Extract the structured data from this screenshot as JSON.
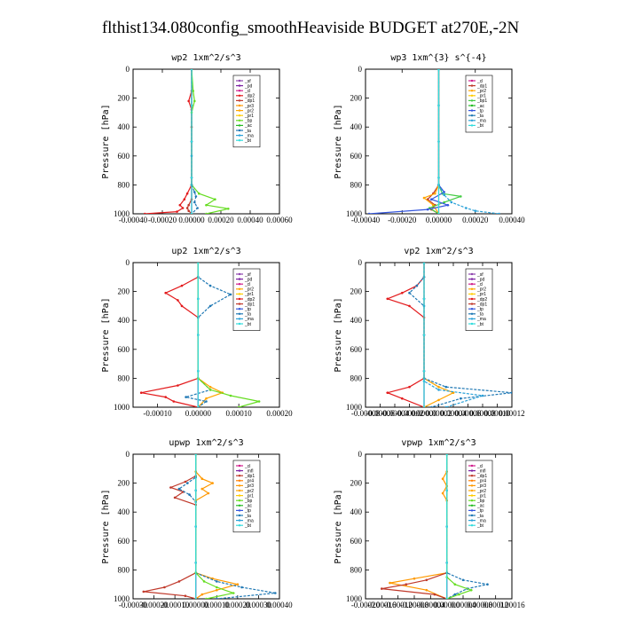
{
  "figure": {
    "title": "flthist134.080config_smoothHeaviside  BUDGET at270E,-2N"
  },
  "colors": {
    "_sf": "#8e44ad",
    "_pd": "#7b1fa2",
    "_cl": "#d01c8b",
    "_dp2": "#e31a1c",
    "_dp1": "#c0392b",
    "_pr3": "#ff9900",
    "_pr2": "#ffa500",
    "_pr1": "#ffcc00",
    "_bp": "#66dd22",
    "_ac": "#22bb22",
    "_ta": "#1f78b4",
    "_ma": "#2aa1d8",
    "_bt": "#33dddd",
    "_bp1": "#44cc44",
    "_tp": "#3355dd",
    "_pr4": "#ff7f00",
    "_mfl": "#7b1fa2"
  },
  "chart_data": [
    {
      "type": "line",
      "title": "wp2   1xm^2/s^3",
      "ylabel": "Pressure  [hPa]",
      "xlim": [
        -0.0004,
        0.0006
      ],
      "ylim": [
        1000,
        0
      ],
      "xticks": [
        "-0.00040",
        "-0.00020",
        "0.00000",
        "0.00020",
        "0.00040",
        "0.00060"
      ],
      "yticks": [
        "0",
        "200",
        "400",
        "600",
        "800",
        "1000"
      ],
      "legend": [
        "_sf",
        "_pd",
        "_cl",
        "_dp2",
        "_dp1",
        "_pr3",
        "_pr2",
        "_pr1",
        "_bp",
        "_ac",
        "_ta",
        "_ma",
        "_bt"
      ],
      "series": [
        {
          "name": "_sf",
          "x": [
            0,
            0,
            0,
            0,
            0
          ],
          "y": [
            0,
            250,
            500,
            750,
            1000
          ]
        },
        {
          "name": "_pd",
          "x": [
            0,
            0,
            0,
            0,
            0
          ],
          "y": [
            0,
            250,
            500,
            750,
            1000
          ]
        },
        {
          "name": "_dp2",
          "x": [
            0,
            0,
            -2e-05,
            0,
            0,
            -3e-05,
            -5e-05,
            -8e-05,
            -6e-05,
            -0.0001,
            -0.00032
          ],
          "y": [
            0,
            150,
            220,
            280,
            800,
            860,
            900,
            940,
            960,
            985,
            1000
          ]
        },
        {
          "name": "_dp1",
          "x": [
            0,
            0,
            0,
            0,
            -2e-05,
            -3e-05,
            -2e-05,
            0
          ],
          "y": [
            0,
            400,
            800,
            900,
            940,
            960,
            980,
            1000
          ]
        },
        {
          "name": "_bp",
          "x": [
            0,
            1e-05,
            2e-05,
            0,
            0,
            5e-05,
            0.00016,
            0.0001,
            0.00025,
            0.0001
          ],
          "y": [
            0,
            150,
            220,
            300,
            800,
            860,
            900,
            940,
            965,
            1000
          ]
        },
        {
          "name": "_ta",
          "x": [
            0,
            0,
            0,
            2e-05,
            3e-05,
            2e-05,
            4e-05,
            0
          ],
          "y": [
            0,
            600,
            800,
            850,
            880,
            920,
            960,
            1000
          ]
        },
        {
          "name": "_bt",
          "x": [
            0,
            0,
            0,
            0,
            0
          ],
          "y": [
            0,
            250,
            500,
            750,
            1000
          ]
        }
      ]
    },
    {
      "type": "line",
      "title": "wp3   1xm^{3} s^{-4}",
      "ylabel": "Pressure  [hPa]",
      "xlim": [
        -0.0004,
        0.0004
      ],
      "ylim": [
        1000,
        0
      ],
      "xticks": [
        "-0.00040",
        "-0.00020",
        "0.00000",
        "0.00020",
        "0.00040"
      ],
      "yticks": [
        "0",
        "200",
        "400",
        "600",
        "800",
        "1000"
      ],
      "legend": [
        "_cl",
        "_dp1",
        "_pr2",
        "_pr1",
        "_bp1",
        "_ac",
        "_tp",
        "_ta",
        "_ma",
        "_bt"
      ],
      "series": [
        {
          "name": "_cl",
          "x": [
            0,
            0,
            0,
            0,
            0
          ],
          "y": [
            0,
            250,
            500,
            750,
            1000
          ]
        },
        {
          "name": "_dp1",
          "x": [
            0,
            0,
            -3e-05,
            -6e-05,
            -2e-05,
            -4e-05,
            0
          ],
          "y": [
            0,
            800,
            860,
            900,
            940,
            970,
            1000
          ]
        },
        {
          "name": "_pr2",
          "x": [
            0,
            0,
            -2e-05,
            -8e-05,
            -3e-05,
            0
          ],
          "y": [
            0,
            800,
            860,
            890,
            940,
            1000
          ]
        },
        {
          "name": "_bp1",
          "x": [
            0,
            0,
            2e-05,
            0.00012,
            3e-05,
            -5e-05,
            0
          ],
          "y": [
            0,
            800,
            860,
            880,
            920,
            960,
            1000
          ]
        },
        {
          "name": "_tp",
          "x": [
            0,
            0,
            3e-05,
            -4e-05,
            5e-05,
            -6e-05,
            -0.00038
          ],
          "y": [
            0,
            800,
            850,
            900,
            940,
            970,
            1000
          ]
        },
        {
          "name": "_ma",
          "x": [
            0,
            0,
            3e-05,
            7e-05,
            0.00015,
            0.0002,
            0.00033
          ],
          "y": [
            0,
            800,
            870,
            920,
            960,
            980,
            1000
          ]
        },
        {
          "name": "_bt",
          "x": [
            0,
            0,
            0,
            0,
            0
          ],
          "y": [
            0,
            250,
            500,
            750,
            1000
          ]
        }
      ]
    },
    {
      "type": "line",
      "title": "up2   1xm^2/s^3",
      "ylabel": "Pressure  [hPa]",
      "xlim": [
        -0.00016,
        0.0002
      ],
      "ylim": [
        1000,
        0
      ],
      "xticks": [
        "-0.00010",
        "0.00000",
        "0.00010",
        "0.00020"
      ],
      "yticks": [
        "0",
        "200",
        "400",
        "600",
        "800",
        "1000"
      ],
      "legend": [
        "_sf",
        "_pd",
        "_cl",
        "_pr2",
        "_pr1",
        "_dp2",
        "_dp1",
        "_tp",
        "_ta",
        "_ma",
        "_bt"
      ],
      "series": [
        {
          "name": "_sf",
          "x": [
            0,
            0,
            0,
            0,
            0
          ],
          "y": [
            0,
            250,
            500,
            750,
            1000
          ]
        },
        {
          "name": "_pd",
          "x": [
            0,
            0,
            0,
            0,
            0
          ],
          "y": [
            0,
            250,
            500,
            750,
            1000
          ]
        },
        {
          "name": "_pr2",
          "x": [
            0,
            0,
            3e-05,
            6e-05,
            2e-05,
            0
          ],
          "y": [
            0,
            800,
            860,
            900,
            940,
            1000
          ]
        },
        {
          "name": "_dp2",
          "x": [
            0,
            0,
            -4e-05,
            -8e-05,
            -5e-05,
            -4e-05,
            0,
            0,
            -5e-05,
            -0.00014,
            -8e-05,
            -6e-05,
            0
          ],
          "y": [
            0,
            100,
            160,
            210,
            260,
            300,
            380,
            800,
            850,
            900,
            930,
            960,
            1000
          ]
        },
        {
          "name": "_ta",
          "x": [
            0,
            0,
            3e-05,
            8e-05,
            3e-05,
            0,
            0,
            3e-05,
            -3e-05,
            2e-05,
            0
          ],
          "y": [
            0,
            100,
            160,
            220,
            300,
            380,
            800,
            880,
            930,
            960,
            1000
          ]
        },
        {
          "name": "_bp",
          "x": [
            0,
            0,
            3e-05,
            8e-05,
            0.00015,
            0.0001
          ],
          "y": [
            0,
            800,
            880,
            920,
            960,
            1000
          ]
        },
        {
          "name": "_bt",
          "x": [
            0,
            0,
            0,
            0,
            0
          ],
          "y": [
            0,
            250,
            500,
            750,
            1000
          ]
        }
      ]
    },
    {
      "type": "line",
      "title": "vp2   1xm^2/s^3",
      "ylabel": "Pressure  [hPa]",
      "xlim": [
        -8e-05,
        0.00012
      ],
      "ylim": [
        1000,
        0
      ],
      "xticks": [
        "-0.00008",
        "-0.00006",
        "-0.00004",
        "-0.00002",
        "0.00000",
        "0.00002",
        "0.00004",
        "0.00006",
        "0.00008",
        "0.00010",
        "0.00012"
      ],
      "yticks": [
        "0",
        "200",
        "400",
        "600",
        "800",
        "1000"
      ],
      "legend": [
        "_sf",
        "_pd",
        "_cl",
        "_pr2",
        "_pr1",
        "_dp2",
        "_dp1",
        "_tp",
        "_ta",
        "_ma",
        "_bt"
      ],
      "series": [
        {
          "name": "_sf",
          "x": [
            0,
            0,
            0,
            0,
            0
          ],
          "y": [
            0,
            250,
            500,
            750,
            1000
          ]
        },
        {
          "name": "_pd",
          "x": [
            0,
            0,
            0,
            0,
            0
          ],
          "y": [
            0,
            250,
            500,
            750,
            1000
          ]
        },
        {
          "name": "_dp2",
          "x": [
            0,
            0,
            -1e-05,
            -3e-05,
            -5e-05,
            -2e-05,
            0,
            0,
            -2e-05,
            -5e-05,
            -3e-05,
            0
          ],
          "y": [
            0,
            100,
            160,
            210,
            250,
            300,
            380,
            800,
            860,
            900,
            940,
            1000
          ]
        },
        {
          "name": "_pr2",
          "x": [
            0,
            0,
            2e-05,
            4e-05,
            2e-05,
            0
          ],
          "y": [
            0,
            800,
            860,
            900,
            950,
            1000
          ]
        },
        {
          "name": "_ta",
          "x": [
            0,
            0,
            -1e-05,
            -2e-05,
            0,
            0,
            3e-05,
            0.00012,
            5e-05,
            1e-05
          ],
          "y": [
            0,
            100,
            160,
            210,
            300,
            800,
            860,
            900,
            940,
            1000
          ]
        },
        {
          "name": "_ma",
          "x": [
            0,
            0,
            2e-05,
            8e-05,
            3e-05
          ],
          "y": [
            0,
            820,
            880,
            920,
            1000
          ]
        },
        {
          "name": "_bt",
          "x": [
            0,
            0,
            0,
            0,
            0
          ],
          "y": [
            0,
            250,
            500,
            750,
            1000
          ]
        }
      ]
    },
    {
      "type": "line",
      "title": "upwp   1xm^2/s^3",
      "ylabel": "Pressure  [hPa]",
      "xlim": [
        -0.0003,
        0.0004
      ],
      "ylim": [
        1000,
        0
      ],
      "xticks": [
        "-0.00030",
        "-0.00020",
        "-0.00010",
        "0.00000",
        "0.00010",
        "0.00020",
        "0.00030",
        "0.00040"
      ],
      "yticks": [
        "0",
        "200",
        "400",
        "600",
        "800",
        "1000"
      ],
      "legend": [
        "_cl",
        "_mfl",
        "_dp1",
        "_pr4",
        "_pr3",
        "_pr2",
        "_pr1",
        "_bp",
        "_ac",
        "_tp",
        "_ta",
        "_ma",
        "_bt"
      ],
      "series": [
        {
          "name": "_cl",
          "x": [
            0,
            0,
            0,
            0,
            0
          ],
          "y": [
            0,
            250,
            500,
            750,
            1000
          ]
        },
        {
          "name": "_mfl",
          "x": [
            0,
            0,
            0,
            0,
            0
          ],
          "y": [
            0,
            250,
            500,
            750,
            1000
          ]
        },
        {
          "name": "_pr3",
          "x": [
            0,
            0,
            3e-05,
            8e-05,
            3e-05,
            6e-05,
            0,
            0,
            8e-05,
            0.0002,
            0.0001,
            3e-05,
            0
          ],
          "y": [
            0,
            120,
            170,
            200,
            240,
            270,
            320,
            820,
            860,
            900,
            940,
            970,
            1000
          ]
        },
        {
          "name": "_dp1",
          "x": [
            0,
            0,
            -5e-05,
            -0.00012,
            -6e-05,
            -0.0001,
            0,
            0,
            -8e-05,
            -0.00015,
            -0.00025,
            -5e-05,
            0
          ],
          "y": [
            0,
            150,
            190,
            230,
            260,
            300,
            350,
            820,
            880,
            920,
            950,
            980,
            1000
          ]
        },
        {
          "name": "_ta",
          "x": [
            0,
            0,
            -4e-05,
            -8e-05,
            -3e-05,
            0,
            0,
            0.0001,
            0.00022,
            0.00038,
            0.0001
          ],
          "y": [
            0,
            160,
            200,
            240,
            280,
            330,
            820,
            880,
            920,
            960,
            1000
          ]
        },
        {
          "name": "_bp",
          "x": [
            0,
            0,
            4e-05,
            0.0001,
            0.00018,
            5e-05
          ],
          "y": [
            0,
            820,
            880,
            920,
            960,
            1000
          ]
        },
        {
          "name": "_bt",
          "x": [
            0,
            0,
            0,
            0,
            0
          ],
          "y": [
            0,
            250,
            500,
            750,
            1000
          ]
        }
      ]
    },
    {
      "type": "line",
      "title": "vpwp   1xm^2/s^3",
      "ylabel": "Pressure  [hPa]",
      "xlim": [
        -0.0002,
        0.00016
      ],
      "ylim": [
        1000,
        0
      ],
      "xticks": [
        "-0.00020",
        "-0.00016",
        "-0.00012",
        "-0.00008",
        "-0.00004",
        "0.00000",
        "0.00004",
        "0.00008",
        "0.00012",
        "0.00016"
      ],
      "yticks": [
        "0",
        "200",
        "400",
        "600",
        "800",
        "1000"
      ],
      "legend": [
        "_cl",
        "_mfl",
        "_dp1",
        "_pr4",
        "_pr3",
        "_pr2",
        "_pr1",
        "_bp",
        "_ac",
        "_tp",
        "_ta",
        "_ma",
        "_bt"
      ],
      "series": [
        {
          "name": "_cl",
          "x": [
            0,
            0,
            0,
            0,
            0
          ],
          "y": [
            0,
            250,
            500,
            750,
            1000
          ]
        },
        {
          "name": "_mfl",
          "x": [
            0,
            0,
            0,
            0,
            0
          ],
          "y": [
            0,
            250,
            500,
            750,
            1000
          ]
        },
        {
          "name": "_pr3",
          "x": [
            0,
            0,
            -1e-05,
            0,
            -1e-05,
            0,
            0,
            -8e-05,
            -0.00014,
            -5e-05,
            0
          ],
          "y": [
            0,
            120,
            170,
            220,
            270,
            320,
            820,
            860,
            890,
            940,
            1000
          ]
        },
        {
          "name": "_dp1",
          "x": [
            0,
            0,
            -5e-05,
            -0.0001,
            -0.00016,
            -3e-05,
            0
          ],
          "y": [
            0,
            820,
            870,
            900,
            930,
            970,
            1000
          ]
        },
        {
          "name": "_ta",
          "x": [
            0,
            0,
            4e-05,
            0.0001,
            5e-05,
            2e-05,
            0
          ],
          "y": [
            0,
            820,
            870,
            900,
            930,
            970,
            1000
          ]
        },
        {
          "name": "_bp",
          "x": [
            0,
            0,
            2e-05,
            6e-05,
            3e-05,
            0
          ],
          "y": [
            0,
            850,
            900,
            940,
            970,
            1000
          ]
        },
        {
          "name": "_bt",
          "x": [
            0,
            0,
            0,
            0,
            0
          ],
          "y": [
            0,
            250,
            500,
            750,
            1000
          ]
        }
      ]
    }
  ]
}
